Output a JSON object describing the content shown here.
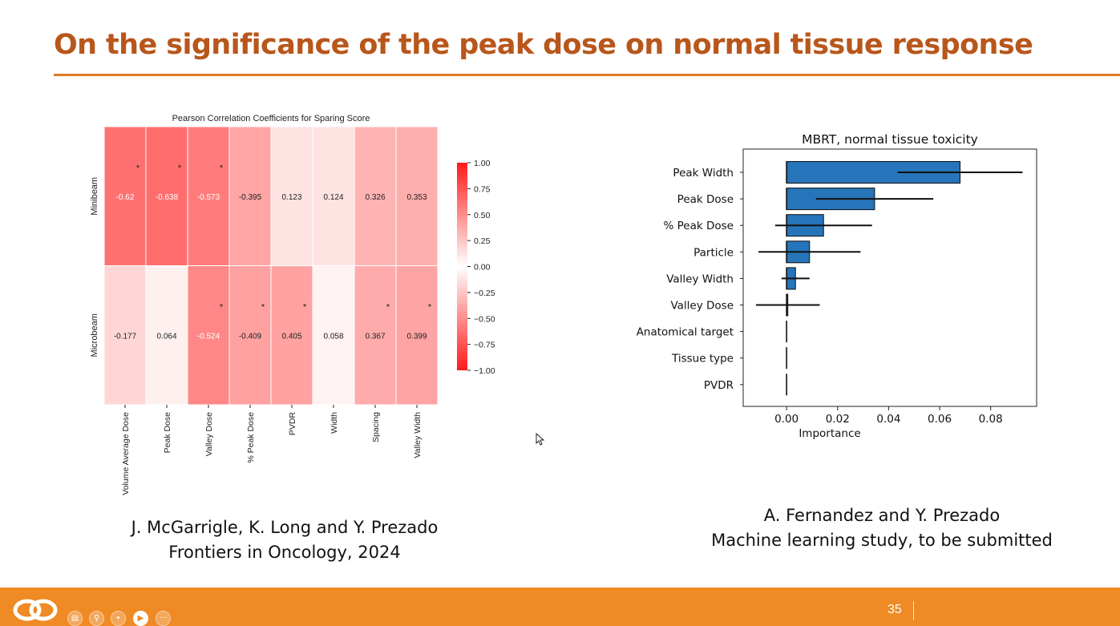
{
  "slide": {
    "title": "On the significance of the peak dose on normal tissue response",
    "page_number": "35",
    "caption_left": [
      "J. McGarrigle, K. Long and Y. Prezado",
      "Frontiers in Oncology, 2024"
    ],
    "caption_right": [
      "A.   Fernandez and Y. Prezado",
      "Machine learning study, to be submitted"
    ],
    "colors": {
      "title": "#b8561b",
      "rule": "#e27b26",
      "footer": "#ef8a25"
    },
    "toolbar_icons": [
      "logo-icon",
      "slides-icon",
      "zoom-icon",
      "pointer-icon",
      "camera-icon",
      "more-icon"
    ],
    "toolbar_more": "···"
  },
  "chart_data": [
    {
      "type": "heatmap",
      "title": "Pearson Correlation Coefficients for Sparing Score",
      "rows": [
        "Minibeam",
        "Microbeam"
      ],
      "columns": [
        "Volume Average Dose",
        "Peak Dose",
        "Valley Dose",
        "% Peak Dose",
        "PVDR",
        "Width",
        "Spacing",
        "Valley Width"
      ],
      "values": [
        [
          "-0.62",
          "-0.638",
          "-0.573",
          "-0.395",
          "0.123",
          "0.124",
          "0.326",
          "0.353"
        ],
        [
          "-0.177",
          "0.064",
          "-0.524",
          "-0.409",
          "0.405",
          "0.058",
          "0.367",
          "0.399"
        ]
      ],
      "significant": [
        [
          true,
          true,
          true,
          false,
          false,
          false,
          false,
          false
        ],
        [
          false,
          false,
          true,
          true,
          true,
          false,
          true,
          true
        ]
      ],
      "significance_marker": "*",
      "colorbar": {
        "range": [
          -1.0,
          1.0
        ],
        "ticks": [
          "1.00",
          "0.75",
          "0.50",
          "0.25",
          "0.00",
          "−0.25",
          "−0.50",
          "−0.75",
          "−1.00"
        ],
        "colors": {
          "extreme": "#ff1a1a",
          "center": "#ffffff"
        }
      }
    },
    {
      "type": "bar",
      "orientation": "horizontal",
      "title": "MBRT, normal tissue toxicity",
      "xlabel": "Importance",
      "categories": [
        "Peak Width",
        "Peak Dose",
        "% Peak Dose",
        "Particle",
        "Valley Width",
        "Valley Dose",
        "Anatomical target",
        "Tissue type",
        "PVDR"
      ],
      "values": [
        0.068,
        0.0345,
        0.0145,
        0.009,
        0.0035,
        0.0005,
        0.0,
        0.0,
        0.0
      ],
      "errors": [
        0.0245,
        0.023,
        0.019,
        0.02,
        0.0055,
        0.0125,
        0.0,
        0.0,
        0.0
      ],
      "xlim": [
        -0.017,
        0.098
      ],
      "xticks": [
        "0.00",
        "0.02",
        "0.04",
        "0.06",
        "0.08"
      ],
      "bar_color": "#2674b9"
    }
  ]
}
